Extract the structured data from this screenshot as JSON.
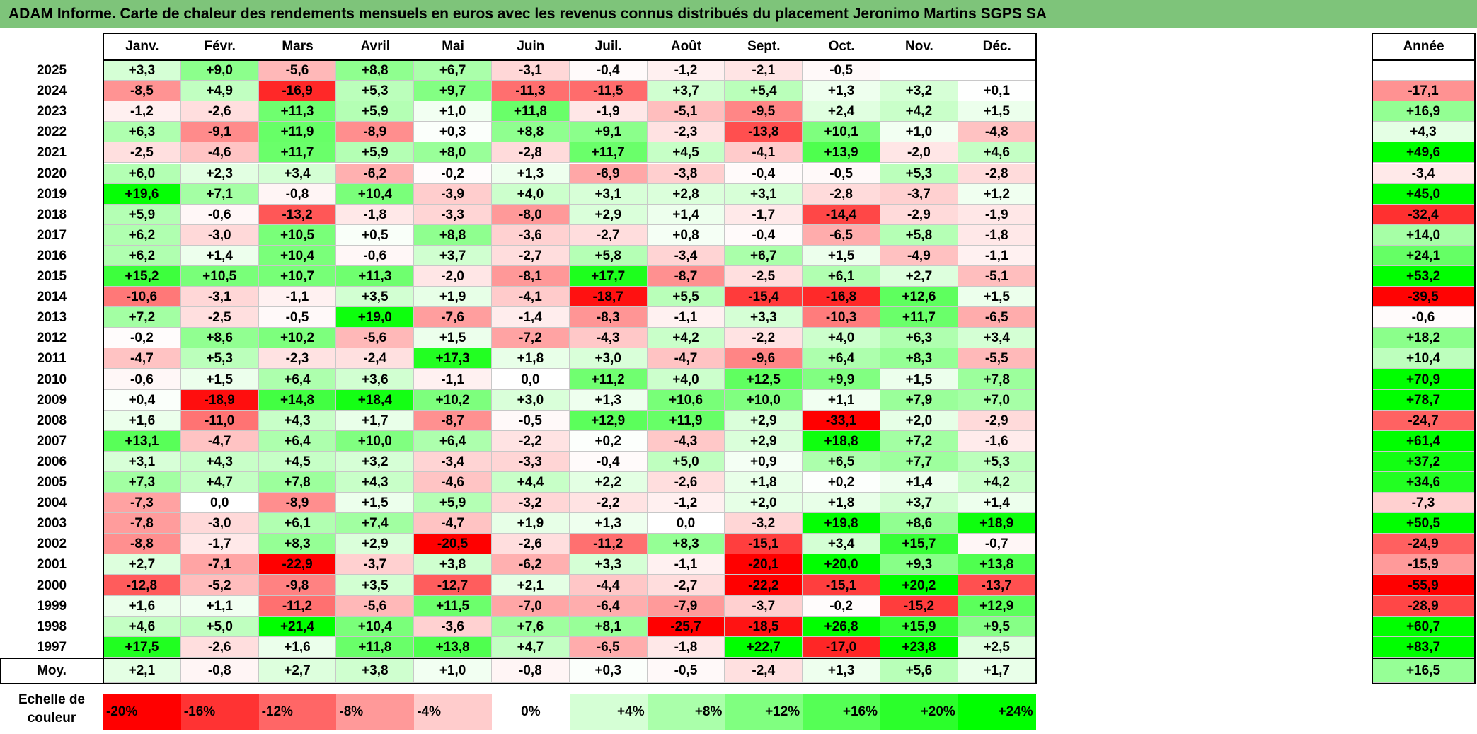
{
  "title": "ADAM Informe. Carte de chaleur des rendements mensuels en euros avec les revenus connus distribués du placement Jeronimo Martins SGPS SA",
  "chart_data": {
    "type": "heatmap",
    "title": "ADAM Informe. Carte de chaleur des rendements mensuels en euros avec les revenus connus distribués du placement Jeronimo Martins SGPS SA",
    "months": [
      "Janv.",
      "Févr.",
      "Mars",
      "Avril",
      "Mai",
      "Juin",
      "Juil.",
      "Août",
      "Sept.",
      "Oct.",
      "Nov.",
      "Déc."
    ],
    "year_header": "Année",
    "average_label": "Moy.",
    "rows": [
      {
        "year": "2025",
        "values": [
          "+3,3",
          "+9,0",
          "-5,6",
          "+8,8",
          "+6,7",
          "-3,1",
          "-0,4",
          "-1,2",
          "-2,1",
          "-0,5",
          "",
          ""
        ],
        "annual": ""
      },
      {
        "year": "2024",
        "values": [
          "-8,5",
          "+4,9",
          "-16,9",
          "+5,3",
          "+9,7",
          "-11,3",
          "-11,5",
          "+3,7",
          "+5,4",
          "+1,3",
          "+3,2",
          "+0,1"
        ],
        "annual": "-17,1"
      },
      {
        "year": "2023",
        "values": [
          "-1,2",
          "-2,6",
          "+11,3",
          "+5,9",
          "+1,0",
          "+11,8",
          "-1,9",
          "-5,1",
          "-9,5",
          "+2,4",
          "+4,2",
          "+1,5"
        ],
        "annual": "+16,9"
      },
      {
        "year": "2022",
        "values": [
          "+6,3",
          "-9,1",
          "+11,9",
          "-8,9",
          "+0,3",
          "+8,8",
          "+9,1",
          "-2,3",
          "-13,8",
          "+10,1",
          "+1,0",
          "-4,8"
        ],
        "annual": "+4,3"
      },
      {
        "year": "2021",
        "values": [
          "-2,5",
          "-4,6",
          "+11,7",
          "+5,9",
          "+8,0",
          "-2,8",
          "+11,7",
          "+4,5",
          "-4,1",
          "+13,9",
          "-2,0",
          "+4,6"
        ],
        "annual": "+49,6"
      },
      {
        "year": "2020",
        "values": [
          "+6,0",
          "+2,3",
          "+3,4",
          "-6,2",
          "-0,2",
          "+1,3",
          "-6,9",
          "-3,8",
          "-0,4",
          "-0,5",
          "+5,3",
          "-2,8"
        ],
        "annual": "-3,4"
      },
      {
        "year": "2019",
        "values": [
          "+19,6",
          "+7,1",
          "-0,8",
          "+10,4",
          "-3,9",
          "+4,0",
          "+3,1",
          "+2,8",
          "+3,1",
          "-2,8",
          "-3,7",
          "+1,2"
        ],
        "annual": "+45,0"
      },
      {
        "year": "2018",
        "values": [
          "+5,9",
          "-0,6",
          "-13,2",
          "-1,8",
          "-3,3",
          "-8,0",
          "+2,9",
          "+1,4",
          "-1,7",
          "-14,4",
          "-2,9",
          "-1,9"
        ],
        "annual": "-32,4"
      },
      {
        "year": "2017",
        "values": [
          "+6,2",
          "-3,0",
          "+10,5",
          "+0,5",
          "+8,8",
          "-3,6",
          "-2,7",
          "+0,8",
          "-0,4",
          "-6,5",
          "+5,8",
          "-1,8"
        ],
        "annual": "+14,0"
      },
      {
        "year": "2016",
        "values": [
          "+6,2",
          "+1,4",
          "+10,4",
          "-0,6",
          "+3,7",
          "-2,7",
          "+5,8",
          "-3,4",
          "+6,7",
          "+1,5",
          "-4,9",
          "-1,1"
        ],
        "annual": "+24,1"
      },
      {
        "year": "2015",
        "values": [
          "+15,2",
          "+10,5",
          "+10,7",
          "+11,3",
          "-2,0",
          "-8,1",
          "+17,7",
          "-8,7",
          "-2,5",
          "+6,1",
          "+2,7",
          "-5,1"
        ],
        "annual": "+53,2"
      },
      {
        "year": "2014",
        "values": [
          "-10,6",
          "-3,1",
          "-1,1",
          "+3,5",
          "+1,9",
          "-4,1",
          "-18,7",
          "+5,5",
          "-15,4",
          "-16,8",
          "+12,6",
          "+1,5"
        ],
        "annual": "-39,5"
      },
      {
        "year": "2013",
        "values": [
          "+7,2",
          "-2,5",
          "-0,5",
          "+19,0",
          "-7,6",
          "-1,4",
          "-8,3",
          "-1,1",
          "+3,3",
          "-10,3",
          "+11,7",
          "-6,5"
        ],
        "annual": "-0,6"
      },
      {
        "year": "2012",
        "values": [
          "-0,2",
          "+8,6",
          "+10,2",
          "-5,6",
          "+1,5",
          "-7,2",
          "-4,3",
          "+4,2",
          "-2,2",
          "+4,0",
          "+6,3",
          "+3,4"
        ],
        "annual": "+18,2"
      },
      {
        "year": "2011",
        "values": [
          "-4,7",
          "+5,3",
          "-2,3",
          "-2,4",
          "+17,3",
          "+1,8",
          "+3,0",
          "-4,7",
          "-9,6",
          "+6,4",
          "+8,3",
          "-5,5"
        ],
        "annual": "+10,4"
      },
      {
        "year": "2010",
        "values": [
          "-0,6",
          "+1,5",
          "+6,4",
          "+3,6",
          "-1,1",
          "0,0",
          "+11,2",
          "+4,0",
          "+12,5",
          "+9,9",
          "+1,5",
          "+7,8"
        ],
        "annual": "+70,9"
      },
      {
        "year": "2009",
        "values": [
          "+0,4",
          "-18,9",
          "+14,8",
          "+18,4",
          "+10,2",
          "+3,0",
          "+1,3",
          "+10,6",
          "+10,0",
          "+1,1",
          "+7,9",
          "+7,0"
        ],
        "annual": "+78,7"
      },
      {
        "year": "2008",
        "values": [
          "+1,6",
          "-11,0",
          "+4,3",
          "+1,7",
          "-8,7",
          "-0,5",
          "+12,9",
          "+11,9",
          "+2,9",
          "-33,1",
          "+2,0",
          "-2,9"
        ],
        "annual": "-24,7"
      },
      {
        "year": "2007",
        "values": [
          "+13,1",
          "-4,7",
          "+6,4",
          "+10,0",
          "+6,4",
          "-2,2",
          "+0,2",
          "-4,3",
          "+2,9",
          "+18,8",
          "+7,2",
          "-1,6"
        ],
        "annual": "+61,4"
      },
      {
        "year": "2006",
        "values": [
          "+3,1",
          "+4,3",
          "+4,5",
          "+3,2",
          "-3,4",
          "-3,3",
          "-0,4",
          "+5,0",
          "+0,9",
          "+6,5",
          "+7,7",
          "+5,3"
        ],
        "annual": "+37,2"
      },
      {
        "year": "2005",
        "values": [
          "+7,3",
          "+4,7",
          "+7,8",
          "+4,3",
          "-4,6",
          "+4,4",
          "+2,2",
          "-2,6",
          "+1,8",
          "+0,2",
          "+1,4",
          "+4,2"
        ],
        "annual": "+34,6"
      },
      {
        "year": "2004",
        "values": [
          "-7,3",
          "0,0",
          "-8,9",
          "+1,5",
          "+5,9",
          "-3,2",
          "-2,2",
          "-1,2",
          "+2,0",
          "+1,8",
          "+3,7",
          "+1,4"
        ],
        "annual": "-7,3"
      },
      {
        "year": "2003",
        "values": [
          "-7,8",
          "-3,0",
          "+6,1",
          "+7,4",
          "-4,7",
          "+1,9",
          "+1,3",
          "0,0",
          "-3,2",
          "+19,8",
          "+8,6",
          "+18,9"
        ],
        "annual": "+50,5"
      },
      {
        "year": "2002",
        "values": [
          "-8,8",
          "-1,7",
          "+8,3",
          "+2,9",
          "-20,5",
          "-2,6",
          "-11,2",
          "+8,3",
          "-15,1",
          "+3,4",
          "+15,7",
          "-0,7"
        ],
        "annual": "-24,9"
      },
      {
        "year": "2001",
        "values": [
          "+2,7",
          "-7,1",
          "-22,9",
          "-3,7",
          "+3,8",
          "-6,2",
          "+3,3",
          "-1,1",
          "-20,1",
          "+20,0",
          "+9,3",
          "+13,8"
        ],
        "annual": "-15,9"
      },
      {
        "year": "2000",
        "values": [
          "-12,8",
          "-5,2",
          "-9,8",
          "+3,5",
          "-12,7",
          "+2,1",
          "-4,4",
          "-2,7",
          "-22,2",
          "-15,1",
          "+20,2",
          "-13,7"
        ],
        "annual": "-55,9"
      },
      {
        "year": "1999",
        "values": [
          "+1,6",
          "+1,1",
          "-11,2",
          "-5,6",
          "+11,5",
          "-7,0",
          "-6,4",
          "-7,9",
          "-3,7",
          "-0,2",
          "-15,2",
          "+12,9"
        ],
        "annual": "-28,9"
      },
      {
        "year": "1998",
        "values": [
          "+4,6",
          "+5,0",
          "+21,4",
          "+10,4",
          "-3,6",
          "+7,6",
          "+8,1",
          "-25,7",
          "-18,5",
          "+26,8",
          "+15,9",
          "+9,5"
        ],
        "annual": "+60,7"
      },
      {
        "year": "1997",
        "values": [
          "+17,5",
          "-2,6",
          "+1,6",
          "+11,8",
          "+13,8",
          "+4,7",
          "-6,5",
          "-1,8",
          "+22,7",
          "-17,0",
          "+23,8",
          "+2,5"
        ],
        "annual": "+83,7"
      }
    ],
    "averages": [
      "+2,1",
      "-0,8",
      "+2,7",
      "+3,8",
      "+1,0",
      "-0,8",
      "+0,3",
      "-0,5",
      "-2,4",
      "+1,3",
      "+5,6",
      "+1,7"
    ],
    "average_annual": "+16,5",
    "scale_label": "Echelle de couleur",
    "scale": [
      {
        "label": "-20%",
        "value": -20
      },
      {
        "label": "-16%",
        "value": -16
      },
      {
        "label": "-12%",
        "value": -12
      },
      {
        "label": "-8%",
        "value": -8
      },
      {
        "label": "-4%",
        "value": -4
      },
      {
        "label": "0%",
        "value": 0
      },
      {
        "label": "+4%",
        "value": 4
      },
      {
        "label": "+8%",
        "value": 8
      },
      {
        "label": "+12%",
        "value": 12
      },
      {
        "label": "+16%",
        "value": 16
      },
      {
        "label": "+20%",
        "value": 20
      },
      {
        "label": "+24%",
        "value": 24
      }
    ],
    "colors": {
      "negative_max": "#ff0000",
      "neutral": "#ffffff",
      "positive_max": "#00ff00",
      "title_bar": "#7ec47a"
    }
  }
}
